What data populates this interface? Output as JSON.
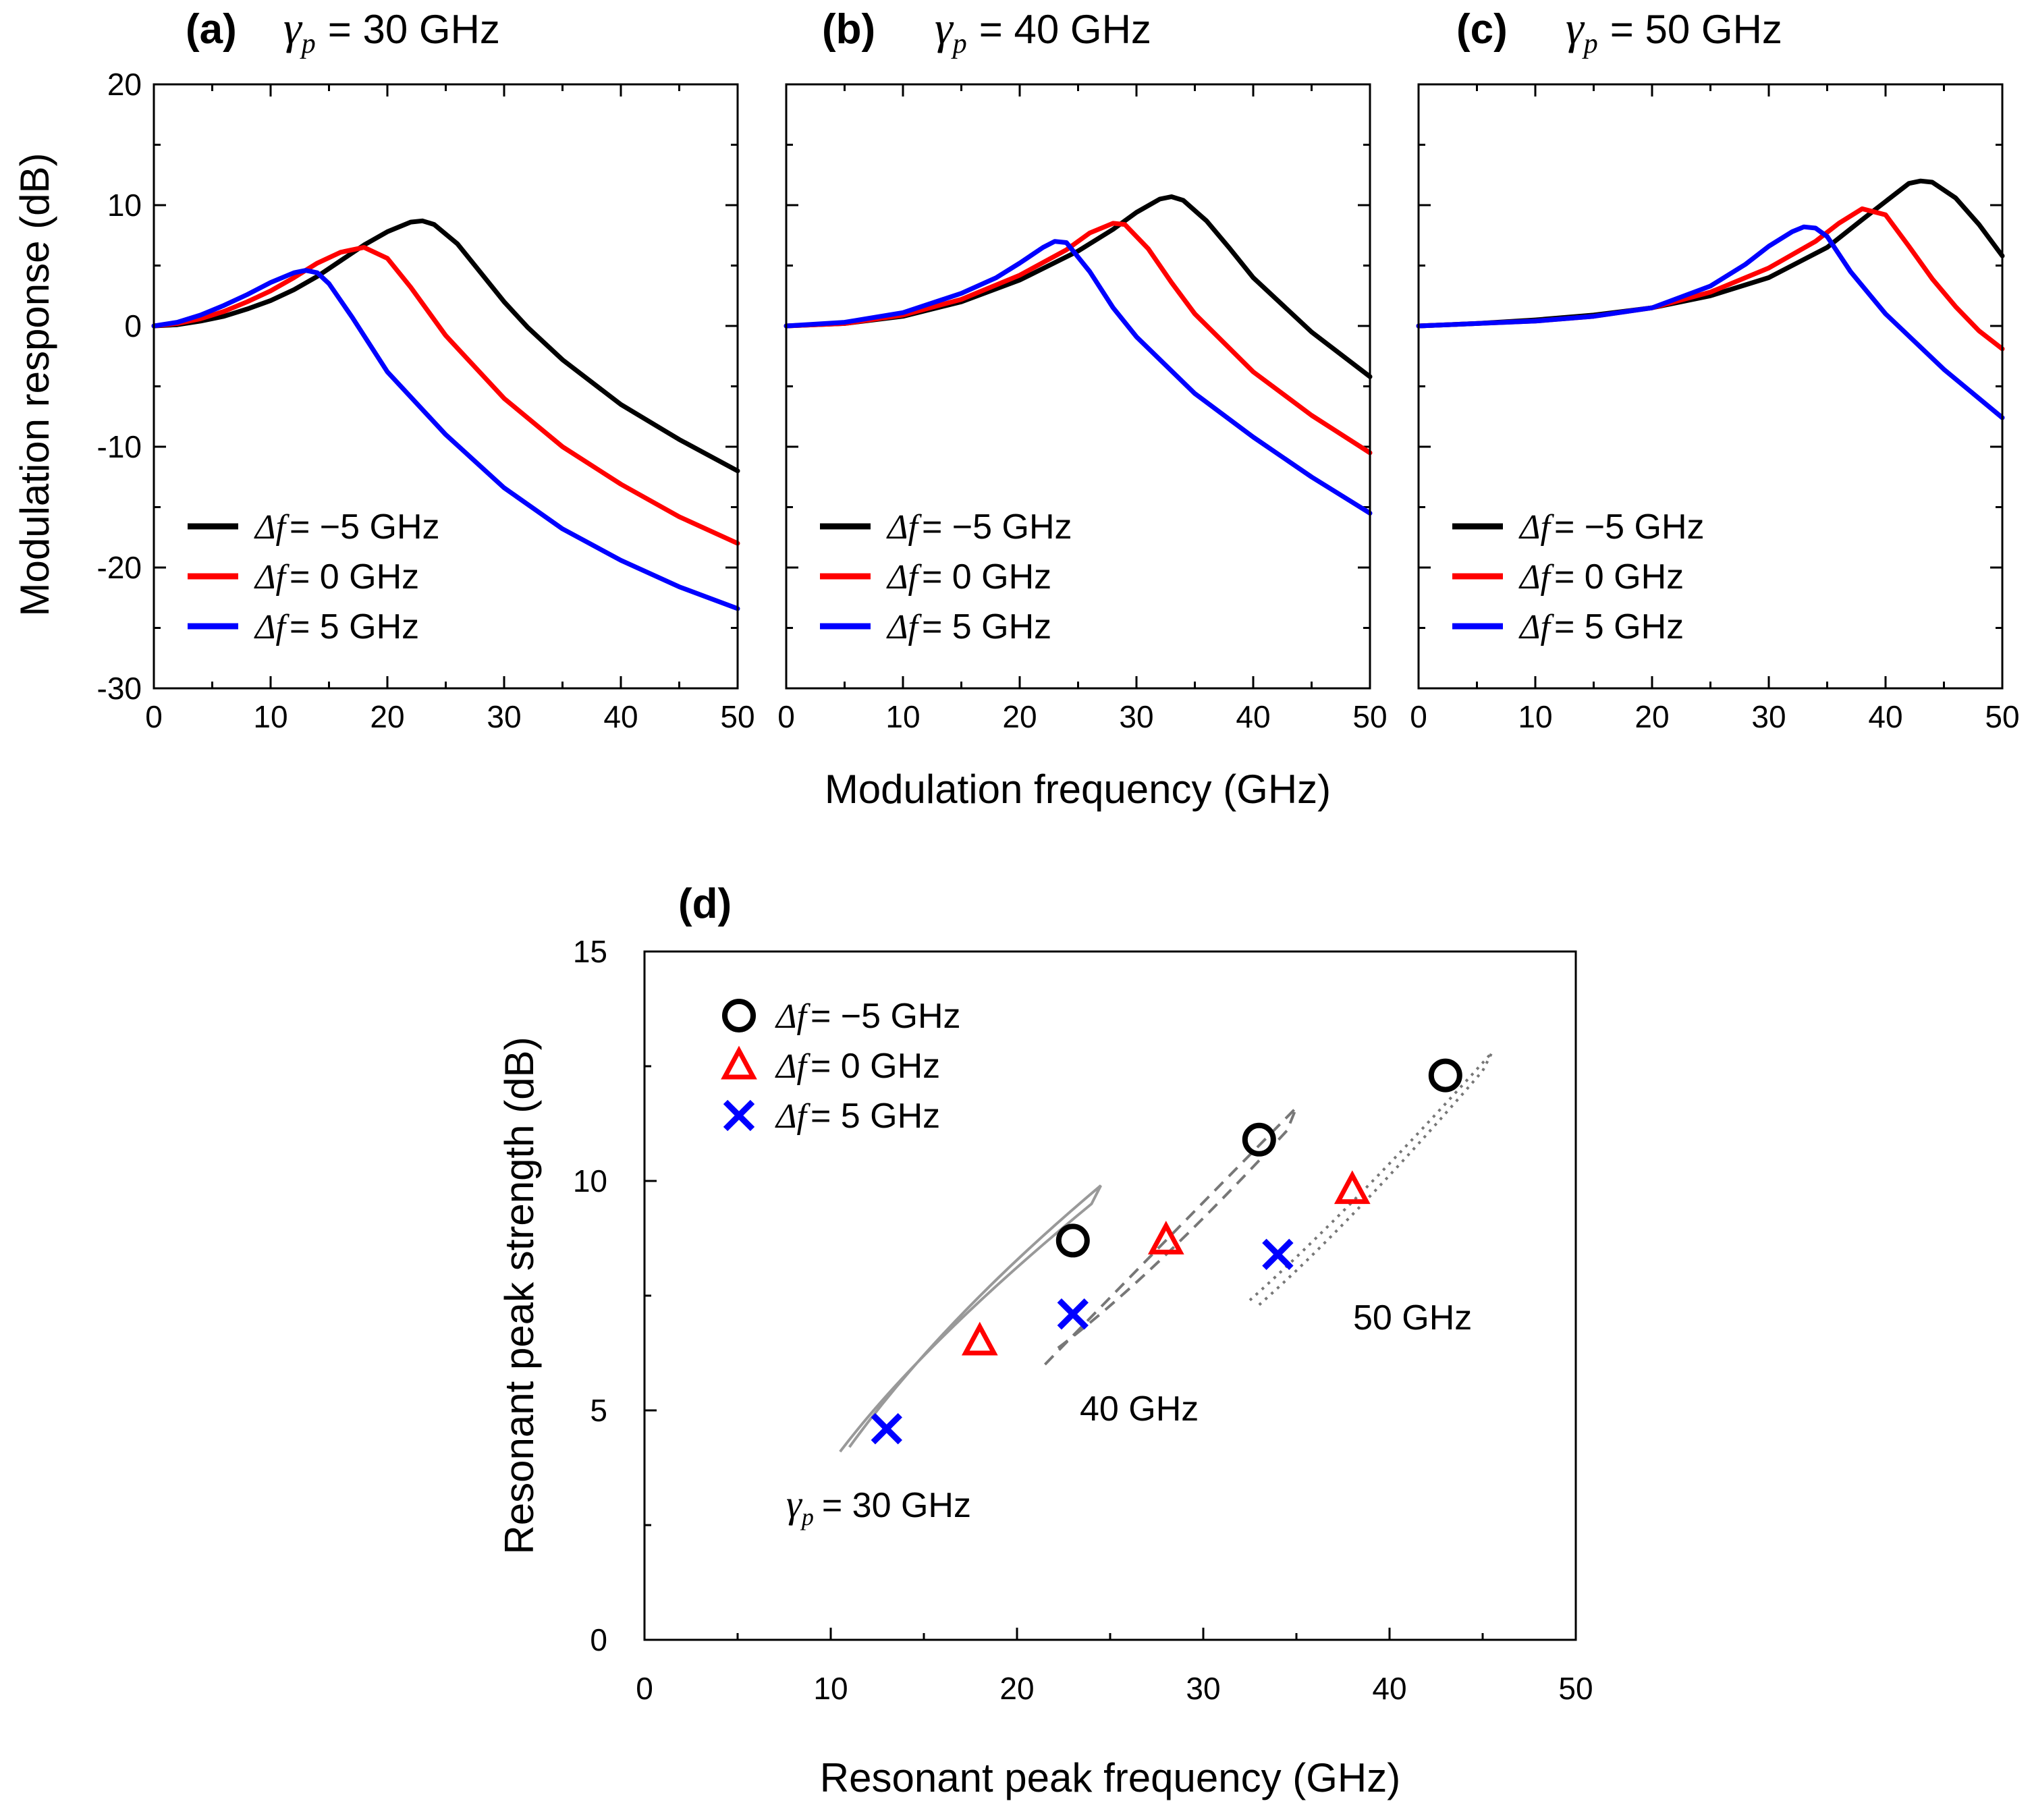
{
  "chart_data": [
    {
      "type": "line",
      "panel": "(a)",
      "title_symbol": "γ",
      "title_subscript": "p",
      "title_value": "= 30 GHz",
      "xlabel": "Modulation frequency (GHz)",
      "ylabel": "Modulation response (dB)",
      "xlim": [
        0,
        50
      ],
      "ylim": [
        -30,
        20
      ],
      "xticks": [
        "0",
        "10",
        "20",
        "30",
        "40",
        "50"
      ],
      "yticks": [
        "-30",
        "-20",
        "-10",
        "0",
        "10",
        "20"
      ],
      "legend_position": "lower-left",
      "series": [
        {
          "delta_symbol": "Δf",
          "label": "= −5 GHz",
          "color": "#000000",
          "x": [
            0,
            2,
            4,
            6,
            8,
            10,
            12,
            14,
            16,
            18,
            20,
            22,
            23,
            24,
            26,
            28,
            30,
            32,
            35,
            40,
            45,
            50
          ],
          "y": [
            0,
            0.1,
            0.4,
            0.8,
            1.4,
            2.1,
            3.0,
            4.1,
            5.4,
            6.7,
            7.8,
            8.6,
            8.7,
            8.4,
            6.8,
            4.4,
            2.0,
            -0.1,
            -2.8,
            -6.5,
            -9.4,
            -12.0
          ]
        },
        {
          "delta_symbol": "Δf",
          "label": "=  0 GHz",
          "color": "#ff0000",
          "x": [
            0,
            2,
            4,
            6,
            8,
            10,
            12,
            14,
            16,
            18,
            20,
            22,
            25,
            30,
            35,
            40,
            45,
            50
          ],
          "y": [
            0,
            0.2,
            0.6,
            1.2,
            2.0,
            2.9,
            4.0,
            5.2,
            6.1,
            6.5,
            5.6,
            3.2,
            -0.8,
            -6.0,
            -10.0,
            -13.1,
            -15.8,
            -18.0
          ]
        },
        {
          "delta_symbol": "Δf",
          "label": "=  5 GHz",
          "color": "#0000ff",
          "x": [
            0,
            2,
            4,
            6,
            8,
            10,
            12,
            13,
            14,
            15,
            17,
            20,
            25,
            30,
            35,
            40,
            45,
            50
          ],
          "y": [
            0,
            0.3,
            0.9,
            1.7,
            2.6,
            3.6,
            4.4,
            4.6,
            4.4,
            3.5,
            0.7,
            -3.8,
            -9.0,
            -13.4,
            -16.8,
            -19.4,
            -21.6,
            -23.4
          ]
        }
      ]
    },
    {
      "type": "line",
      "panel": "(b)",
      "title_symbol": "γ",
      "title_subscript": "p",
      "title_value": "= 40 GHz",
      "xlabel": "Modulation frequency (GHz)",
      "xlim": [
        0,
        50
      ],
      "ylim": [
        -30,
        20
      ],
      "xticks": [
        "0",
        "10",
        "20",
        "30",
        "40",
        "50"
      ],
      "legend_position": "lower-left",
      "series": [
        {
          "delta_symbol": "Δf",
          "label": "= −5 GHz",
          "color": "#000000",
          "x": [
            0,
            5,
            10,
            15,
            20,
            25,
            28,
            30,
            32,
            33,
            34,
            36,
            38,
            40,
            45,
            50
          ],
          "y": [
            0,
            0.2,
            0.8,
            2.0,
            3.8,
            6.2,
            8.0,
            9.4,
            10.5,
            10.7,
            10.4,
            8.7,
            6.4,
            4.0,
            -0.5,
            -4.2
          ]
        },
        {
          "delta_symbol": "Δf",
          "label": "=  0 GHz",
          "color": "#ff0000",
          "x": [
            0,
            5,
            10,
            15,
            20,
            24,
            26,
            28,
            29,
            31,
            33,
            35,
            40,
            45,
            50
          ],
          "y": [
            0,
            0.2,
            0.9,
            2.2,
            4.2,
            6.3,
            7.7,
            8.5,
            8.4,
            6.4,
            3.6,
            1.0,
            -3.8,
            -7.4,
            -10.5
          ]
        },
        {
          "delta_symbol": "Δf",
          "label": "=  5 GHz",
          "color": "#0000ff",
          "x": [
            0,
            5,
            10,
            15,
            18,
            20,
            22,
            23,
            24,
            26,
            28,
            30,
            35,
            40,
            45,
            50
          ],
          "y": [
            0,
            0.3,
            1.1,
            2.7,
            4.0,
            5.2,
            6.5,
            7.0,
            6.9,
            4.5,
            1.5,
            -0.9,
            -5.6,
            -9.2,
            -12.5,
            -15.5
          ]
        }
      ]
    },
    {
      "type": "line",
      "panel": "(c)",
      "title_symbol": "γ",
      "title_subscript": "p",
      "title_value": "= 50 GHz",
      "xlim": [
        0,
        50
      ],
      "ylim": [
        -30,
        20
      ],
      "xticks": [
        "0",
        "10",
        "20",
        "30",
        "40",
        "50"
      ],
      "legend_position": "lower-left",
      "series": [
        {
          "delta_symbol": "Δf",
          "label": "= −5 GHz",
          "color": "#000000",
          "x": [
            0,
            5,
            10,
            15,
            20,
            25,
            30,
            35,
            38,
            40,
            42,
            43,
            44,
            46,
            48,
            50
          ],
          "y": [
            0,
            0.2,
            0.5,
            0.9,
            1.5,
            2.5,
            4.0,
            6.5,
            8.8,
            10.3,
            11.8,
            12.0,
            11.9,
            10.6,
            8.4,
            5.8
          ]
        },
        {
          "delta_symbol": "Δf",
          "label": "=  0 GHz",
          "color": "#ff0000",
          "x": [
            0,
            5,
            10,
            15,
            20,
            25,
            30,
            34,
            36,
            38,
            40,
            42,
            44,
            46,
            48,
            50
          ],
          "y": [
            0,
            0.2,
            0.4,
            0.8,
            1.5,
            2.8,
            4.8,
            7.0,
            8.5,
            9.7,
            9.2,
            6.6,
            3.9,
            1.6,
            -0.4,
            -1.9
          ]
        },
        {
          "delta_symbol": "Δf",
          "label": "=  5 GHz",
          "color": "#0000ff",
          "x": [
            0,
            5,
            10,
            15,
            20,
            25,
            28,
            30,
            32,
            33,
            34,
            35,
            37,
            40,
            45,
            50
          ],
          "y": [
            0,
            0.2,
            0.4,
            0.8,
            1.5,
            3.3,
            5.1,
            6.6,
            7.8,
            8.2,
            8.1,
            7.4,
            4.5,
            1.0,
            -3.6,
            -7.6
          ]
        }
      ]
    },
    {
      "type": "scatter",
      "panel": "(d)",
      "xlabel": "Resonant peak frequency (GHz)",
      "ylabel": "Resonant peak strength (dB)",
      "xlim": [
        0,
        50
      ],
      "ylim": [
        0,
        15
      ],
      "xticks": [
        "0",
        "10",
        "20",
        "30",
        "40",
        "50"
      ],
      "yticks": [
        "0",
        "5",
        "10",
        "15"
      ],
      "legend_position": "top-left",
      "series": [
        {
          "delta_symbol": "Δf",
          "label": "= −5 GHz",
          "marker": "circle",
          "color": "#000000",
          "x": [
            23,
            33,
            43
          ],
          "y": [
            8.7,
            10.9,
            12.3
          ]
        },
        {
          "delta_symbol": "Δf",
          "label": "=  0 GHz",
          "marker": "triangle",
          "color": "#ff0000",
          "x": [
            18,
            28,
            38
          ],
          "y": [
            6.5,
            8.7,
            9.8
          ]
        },
        {
          "delta_symbol": "Δf",
          "label": "=  5 GHz",
          "marker": "x",
          "color": "#0000ff",
          "x": [
            13,
            23,
            34
          ],
          "y": [
            4.6,
            7.1,
            8.4
          ]
        }
      ],
      "group_annotations": [
        {
          "id": "g30",
          "symbol": "γ",
          "subscript": "p",
          "text": "= 30 GHz",
          "line_style": "solid",
          "color": "#999999",
          "outline": [
            [
              11,
              4.2
            ],
            [
              16,
              7
            ],
            [
              24.5,
              9.9
            ],
            [
              24,
              9.5
            ],
            [
              15,
              6.5
            ],
            [
              10.5,
              4.1
            ]
          ]
        },
        {
          "id": "g40",
          "symbol": "",
          "subscript": "",
          "text": "40 GHz",
          "line_style": "dashed",
          "color": "#777777",
          "outline": [
            [
              21.5,
              6.0
            ],
            [
              27,
              8.3
            ],
            [
              35,
              11.6
            ],
            [
              34.5,
              11.1
            ],
            [
              27,
              7.8
            ],
            [
              22,
              6.3
            ]
          ]
        },
        {
          "id": "g50",
          "symbol": "",
          "subscript": "",
          "text": "50 GHz",
          "line_style": "dotted",
          "color": "#777777",
          "outline": [
            [
              32.5,
              7.4
            ],
            [
              38,
              9.4
            ],
            [
              45.5,
              12.8
            ],
            [
              45,
              12.4
            ],
            [
              38,
              9.1
            ],
            [
              33,
              7.3
            ]
          ]
        }
      ]
    }
  ]
}
